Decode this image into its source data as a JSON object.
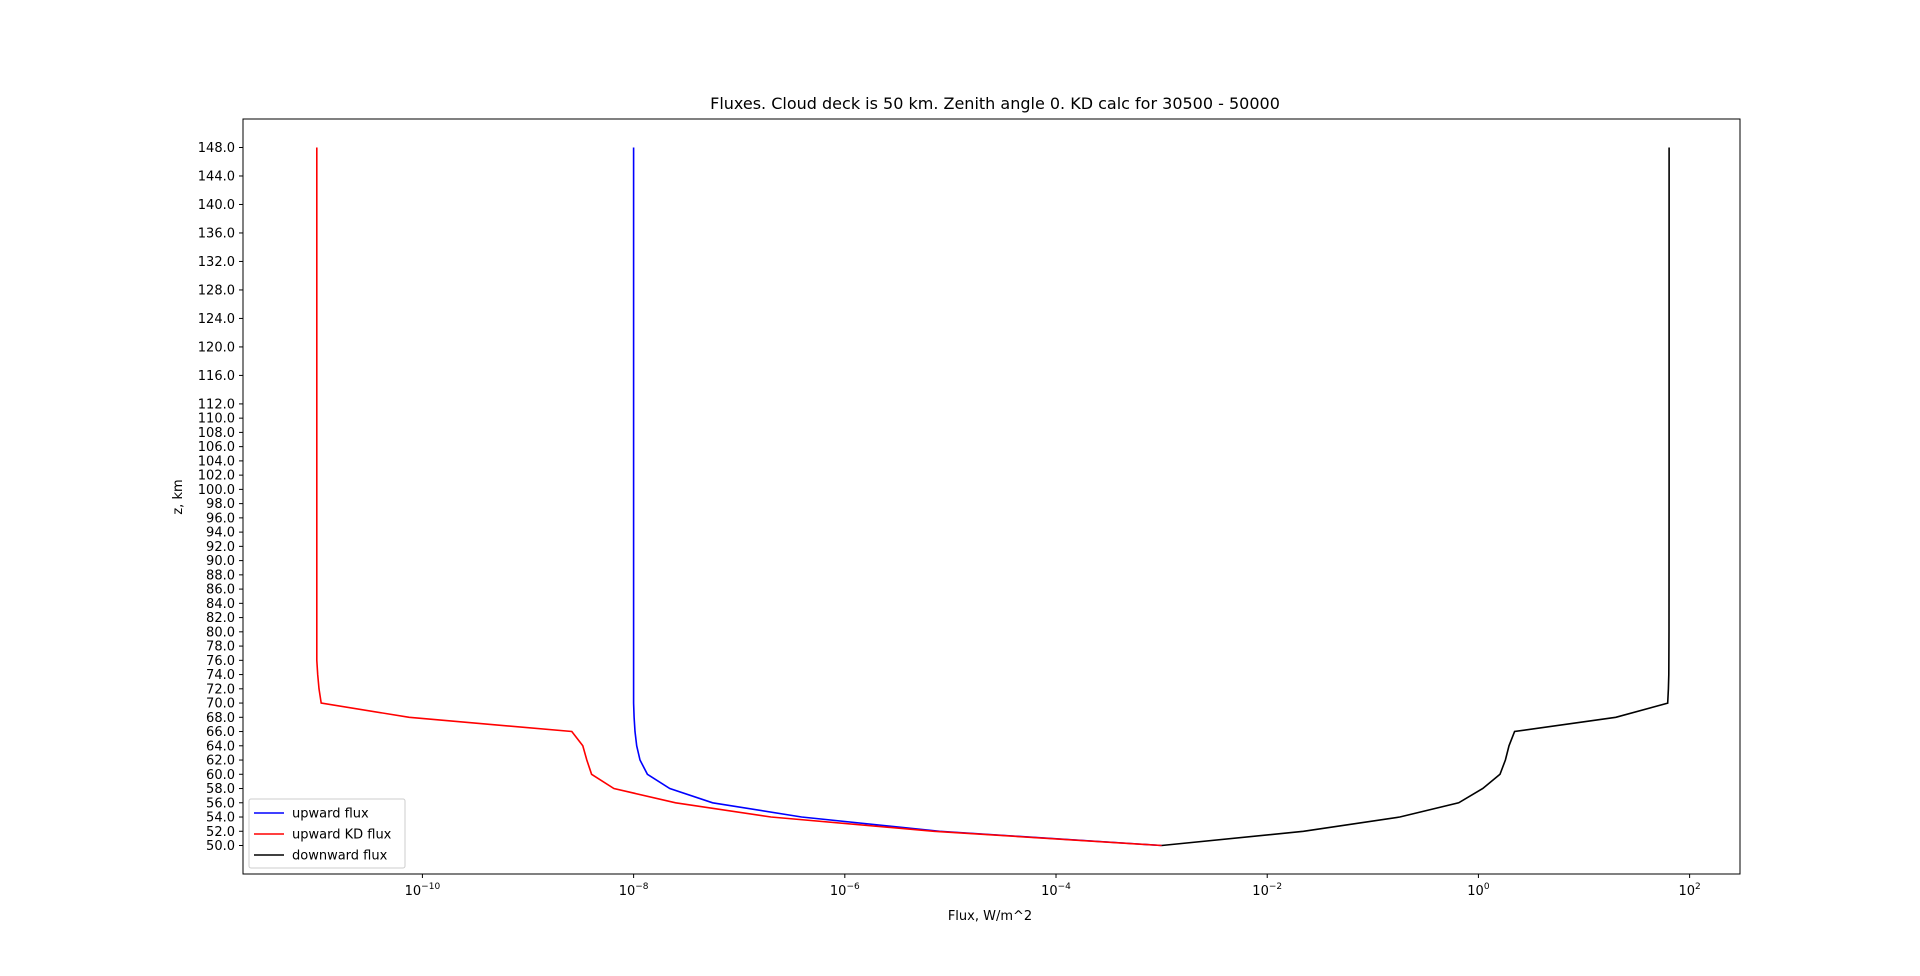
{
  "chart_data": {
    "type": "line",
    "title": "Fluxes. Cloud deck is 50 km. Zenith angle 0. KD calc for 30500 - 50000",
    "xlabel": "Flux, W/m^2",
    "ylabel": "z, km",
    "xscale": "log",
    "xlim": [
      2e-12,
      300
    ],
    "ylim": [
      46,
      152
    ],
    "grid": false,
    "legend_position": "lower-left",
    "x_ticks": [
      {
        "base": "10",
        "exp": "−10",
        "value": 1e-10
      },
      {
        "base": "10",
        "exp": "−8",
        "value": 1e-08
      },
      {
        "base": "10",
        "exp": "−6",
        "value": 1e-06
      },
      {
        "base": "10",
        "exp": "−4",
        "value": 0.0001
      },
      {
        "base": "10",
        "exp": "−2",
        "value": 0.01
      },
      {
        "base": "10",
        "exp": "0",
        "value": 1
      },
      {
        "base": "10",
        "exp": "2",
        "value": 100
      }
    ],
    "y_ticks": [
      "50.0",
      "52.0",
      "54.0",
      "56.0",
      "58.0",
      "60.0",
      "62.0",
      "64.0",
      "66.0",
      "68.0",
      "70.0",
      "72.0",
      "74.0",
      "76.0",
      "78.0",
      "80.0",
      "82.0",
      "84.0",
      "86.0",
      "88.0",
      "90.0",
      "92.0",
      "94.0",
      "96.0",
      "98.0",
      "100.0",
      "102.0",
      "104.0",
      "106.0",
      "108.0",
      "110.0",
      "112.0",
      "116.0",
      "120.0",
      "124.0",
      "128.0",
      "132.0",
      "136.0",
      "140.0",
      "144.0",
      "148.0"
    ],
    "series": [
      {
        "name": "upward flux",
        "color": "#0000ff",
        "points": [
          [
            0.001,
            50
          ],
          [
            7.9e-06,
            52
          ],
          [
            3.9e-07,
            54
          ],
          [
            5.6e-08,
            56
          ],
          [
            2.2e-08,
            58
          ],
          [
            1.35e-08,
            60
          ],
          [
            1.15e-08,
            62
          ],
          [
            1.07e-08,
            64
          ],
          [
            1.03e-08,
            66
          ],
          [
            1.01e-08,
            68
          ],
          [
            1e-08,
            70
          ],
          [
            1e-08,
            80
          ],
          [
            1e-08,
            100
          ],
          [
            1e-08,
            120
          ],
          [
            1e-08,
            148
          ]
        ]
      },
      {
        "name": "upward KD flux",
        "color": "#ff0000",
        "points": [
          [
            0.001,
            50
          ],
          [
            7e-06,
            52
          ],
          [
            2e-07,
            54
          ],
          [
            2.5e-08,
            56
          ],
          [
            6.5e-09,
            58
          ],
          [
            4e-09,
            60
          ],
          [
            3.6e-09,
            62
          ],
          [
            3.3e-09,
            64
          ],
          [
            2.6e-09,
            66
          ],
          [
            7.5e-11,
            68
          ],
          [
            1.1e-11,
            70
          ],
          [
            1.05e-11,
            72
          ],
          [
            1.02e-11,
            74
          ],
          [
            1e-11,
            76
          ],
          [
            1e-11,
            90
          ],
          [
            1e-11,
            120
          ],
          [
            1e-11,
            148
          ]
        ]
      },
      {
        "name": "downward flux",
        "color": "#000000",
        "points": [
          [
            0.001,
            50
          ],
          [
            0.022,
            52
          ],
          [
            0.18,
            54
          ],
          [
            0.65,
            56
          ],
          [
            1.1,
            58
          ],
          [
            1.6,
            60
          ],
          [
            1.8,
            62
          ],
          [
            1.95,
            64
          ],
          [
            2.2,
            66
          ],
          [
            20,
            68
          ],
          [
            62,
            70
          ],
          [
            63,
            72
          ],
          [
            63.5,
            74
          ],
          [
            63.8,
            80
          ],
          [
            64,
            100
          ],
          [
            64,
            148
          ]
        ]
      }
    ]
  }
}
